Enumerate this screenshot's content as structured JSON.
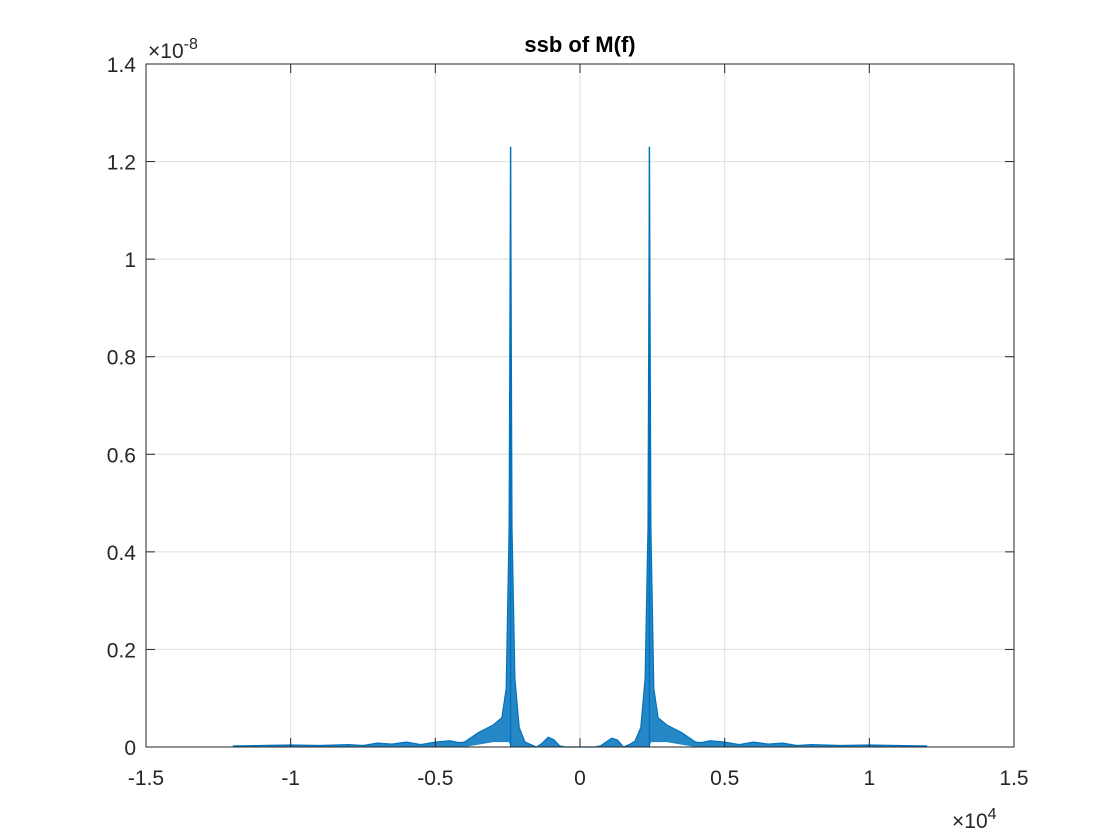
{
  "chart_data": {
    "type": "line",
    "title": "ssb of M(f)",
    "xlabel": "",
    "ylabel": "",
    "x_multiplier": {
      "prefix": "×10",
      "exponent": "4"
    },
    "y_multiplier": {
      "prefix": "×10",
      "exponent": "-8"
    },
    "xlim": [
      -1.5,
      1.5
    ],
    "ylim": [
      0,
      1.4
    ],
    "xticks": [
      -1.5,
      -1,
      -0.5,
      0,
      0.5,
      1,
      1.5
    ],
    "xtick_labels": [
      "-1.5",
      "-1",
      "-0.5",
      "0",
      "0.5",
      "1",
      "1.5"
    ],
    "yticks": [
      0,
      0.2,
      0.4,
      0.6,
      0.8,
      1.0,
      1.2,
      1.4
    ],
    "ytick_labels": [
      "0",
      "0.2",
      "0.4",
      "0.6",
      "0.8",
      "1",
      "1.2",
      "1.4"
    ],
    "grid": true,
    "box": true,
    "series": [
      {
        "color": "#0072bd",
        "peaks_x": [
          -0.24,
          0.24
        ],
        "peak_y": 1.23,
        "x": [
          -1.2,
          -1.0,
          -0.9,
          -0.8,
          -0.75,
          -0.7,
          -0.65,
          -0.6,
          -0.55,
          -0.5,
          -0.45,
          -0.42,
          -0.4,
          -0.35,
          -0.3,
          -0.27,
          -0.255,
          -0.245,
          -0.24,
          -0.235,
          -0.225,
          -0.21,
          -0.19,
          -0.17,
          -0.15,
          -0.13,
          -0.11,
          -0.09,
          -0.07,
          -0.05,
          0,
          0.05,
          0.07,
          0.09,
          0.11,
          0.13,
          0.15,
          0.17,
          0.19,
          0.21,
          0.225,
          0.235,
          0.24,
          0.245,
          0.255,
          0.27,
          0.3,
          0.35,
          0.4,
          0.42,
          0.45,
          0.5,
          0.55,
          0.6,
          0.65,
          0.7,
          0.75,
          0.8,
          0.9,
          1.0,
          1.2
        ],
        "y": [
          0.002,
          0.004,
          0.003,
          0.005,
          0.003,
          0.008,
          0.006,
          0.01,
          0.005,
          0.01,
          0.013,
          0.009,
          0.01,
          0.03,
          0.045,
          0.06,
          0.12,
          0.45,
          1.23,
          0.45,
          0.14,
          0.04,
          0.01,
          0.005,
          0.0,
          0.008,
          0.02,
          0.015,
          0.002,
          0.0,
          0.0,
          0.0,
          0.002,
          0.01,
          0.018,
          0.014,
          0.0,
          0.005,
          0.012,
          0.04,
          0.14,
          0.45,
          1.23,
          0.45,
          0.12,
          0.06,
          0.045,
          0.03,
          0.01,
          0.009,
          0.013,
          0.01,
          0.005,
          0.01,
          0.006,
          0.008,
          0.003,
          0.005,
          0.003,
          0.004,
          0.002
        ],
        "lower_y": [
          0.0,
          0.0,
          0.0,
          0.0,
          0.0,
          0.0,
          0.0,
          0.0,
          0.0,
          0.0,
          0.0,
          0.0,
          0.0,
          0.005,
          0.01,
          0.01,
          0.01,
          0.01,
          0.0,
          0.0,
          0.0,
          0.0,
          0.0,
          0.0,
          0.0,
          0.0,
          0.0,
          0.0,
          0.0,
          0.0,
          0.0,
          0.0,
          0.0,
          0.0,
          0.0,
          0.0,
          0.0,
          0.0,
          0.0,
          0.0,
          0.0,
          0.0,
          0.0,
          0.01,
          0.01,
          0.01,
          0.01,
          0.005,
          0.0,
          0.0,
          0.0,
          0.0,
          0.0,
          0.0,
          0.0,
          0.0,
          0.0,
          0.0,
          0.0,
          0.0,
          0.0
        ]
      }
    ]
  }
}
